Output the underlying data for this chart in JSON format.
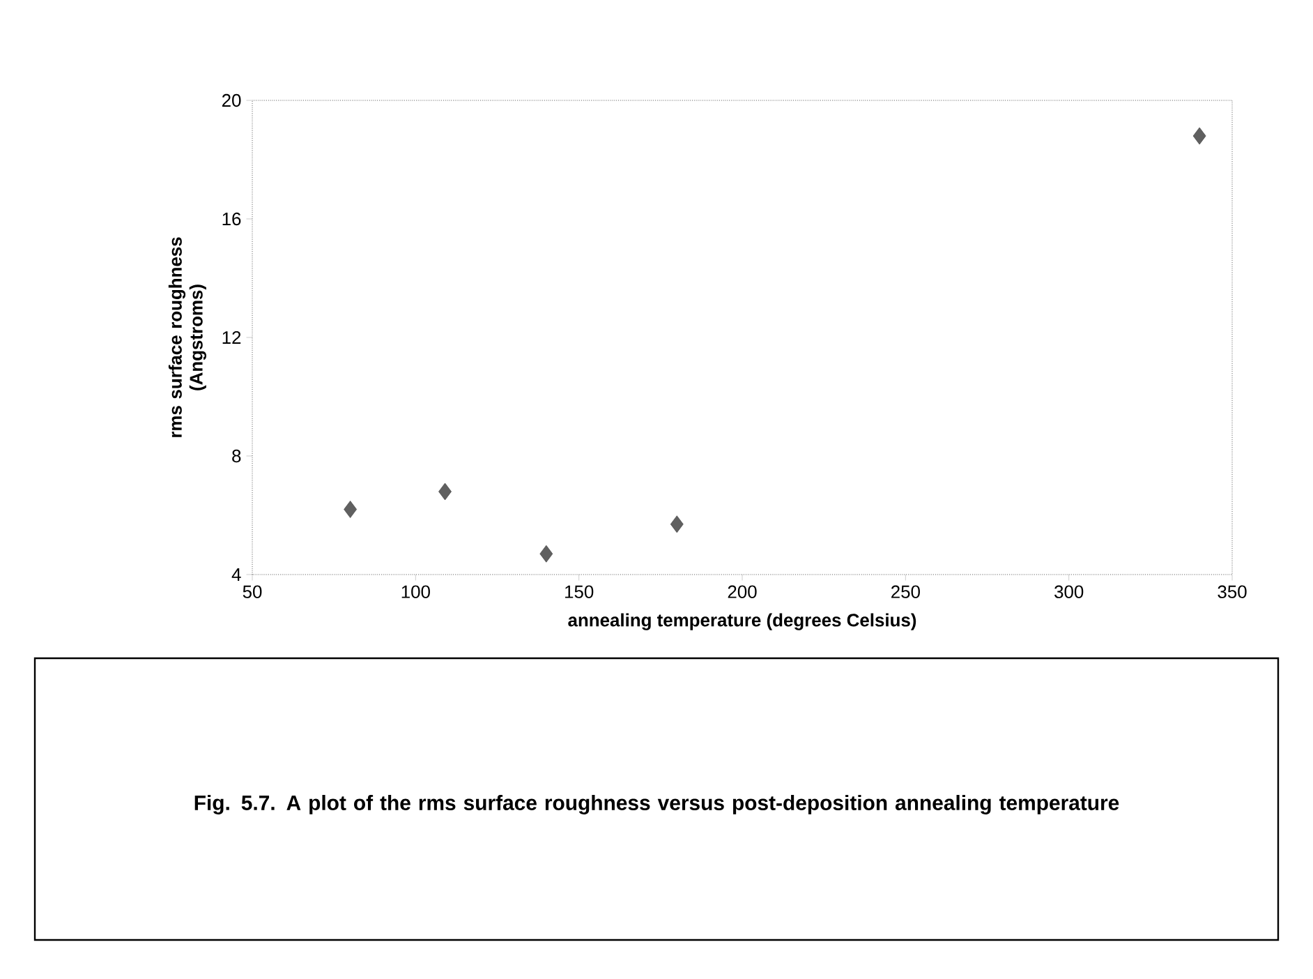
{
  "chart_data": {
    "type": "scatter",
    "xlabel": "annealing temperature (degrees Celsius)",
    "ylabel": "rms surface roughness (Angstroms)",
    "x": [
      80,
      109,
      140,
      180,
      340
    ],
    "values": [
      6.2,
      6.8,
      4.7,
      5.7,
      18.8
    ],
    "color": "#606060",
    "marker": "diamond",
    "xlim": [
      50,
      350
    ],
    "xticks": [
      50,
      100,
      150,
      200,
      250,
      300,
      350
    ],
    "ylim": [
      4,
      20
    ],
    "yticks": [
      4,
      8,
      12,
      16,
      20
    ],
    "annotations": [
      "Fig. 5.7. A plot of the rms surface roughness versus post-deposition annealing temperature"
    ]
  }
}
